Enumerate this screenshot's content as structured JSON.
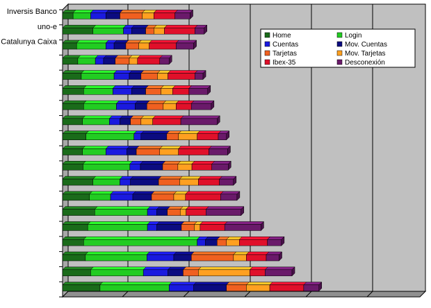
{
  "chart_data": {
    "type": "bar",
    "orientation": "horizontal",
    "stacked": true,
    "three_d": true,
    "categories": [
      "Inversis Banco",
      "uno-e",
      "Catalunya Caixa",
      "",
      "",
      "",
      "",
      "",
      "",
      "",
      "",
      "",
      "",
      "",
      "",
      "",
      "",
      "",
      ""
    ],
    "series": [
      {
        "name": "Home",
        "color": "#1a6b1a",
        "values": [
          18,
          52,
          24,
          26,
          32,
          36,
          36,
          34,
          40,
          34,
          35,
          52,
          46,
          55,
          43,
          36,
          39,
          48,
          64
        ]
      },
      {
        "name": "Login",
        "color": "#22cc22",
        "values": [
          30,
          52,
          50,
          30,
          56,
          50,
          56,
          46,
          82,
          40,
          80,
          46,
          36,
          90,
          102,
          194,
          105,
          90,
          118
        ]
      },
      {
        "name": "Cuentas",
        "color": "#1a1adf",
        "values": [
          26,
          14,
          14,
          14,
          26,
          32,
          32,
          18,
          12,
          36,
          18,
          18,
          38,
          16,
          16,
          14,
          46,
          42,
          42
        ]
      },
      {
        "name": "Mov. Cuentas",
        "color": "#0b0b80",
        "values": [
          24,
          24,
          20,
          20,
          20,
          24,
          20,
          18,
          44,
          16,
          38,
          48,
          32,
          18,
          42,
          20,
          30,
          26,
          56
        ]
      },
      {
        "name": "Tarjetas",
        "color": "#f06020",
        "values": [
          38,
          14,
          22,
          24,
          28,
          26,
          28,
          18,
          20,
          40,
          26,
          36,
          38,
          22,
          22,
          16,
          72,
          26,
          34
        ]
      },
      {
        "name": "Mov. Tarjetas",
        "color": "#ffa020",
        "values": [
          20,
          18,
          18,
          14,
          18,
          20,
          22,
          20,
          32,
          32,
          24,
          32,
          20,
          10,
          10,
          22,
          22,
          88,
          40
        ]
      },
      {
        "name": "Ibex-35",
        "color": "#e0102a",
        "values": [
          36,
          52,
          46,
          38,
          46,
          28,
          26,
          48,
          36,
          52,
          34,
          36,
          60,
          34,
          42,
          48,
          34,
          26,
          58
        ]
      },
      {
        "name": "Desconexión",
        "color": "#6a1a6a",
        "values": [
          26,
          16,
          30,
          16,
          14,
          32,
          34,
          62,
          14,
          32,
          28,
          24,
          28,
          60,
          62,
          24,
          22,
          46,
          26
        ]
      }
    ],
    "title": "",
    "xlabel": "",
    "ylabel": "",
    "xlim": [
      0,
      620
    ],
    "gridlines": "vertical",
    "legend_position": "top-right"
  }
}
